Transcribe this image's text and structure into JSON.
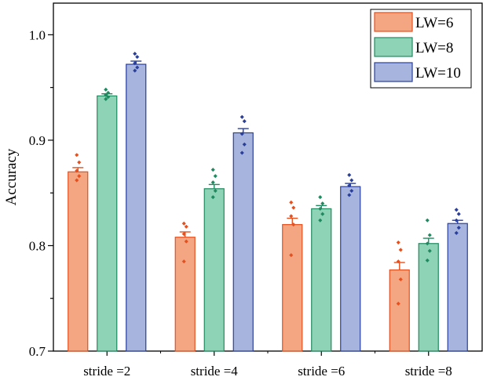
{
  "chart_data": {
    "type": "bar",
    "title": "",
    "xlabel": "",
    "ylabel": "Accuracy",
    "ylim": [
      0.7,
      1.03
    ],
    "yticks": [
      "0.7",
      "0.8",
      "0.9",
      "1.0"
    ],
    "ytick_values": [
      0.7,
      0.8,
      0.9,
      1.0
    ],
    "grid": false,
    "legend_position": "top-right",
    "categories": [
      "stride =2",
      "stride =4",
      "stride =6",
      "stride =8"
    ],
    "series": [
      {
        "name": "LW=6",
        "fill": "#f4a582",
        "stroke": "#e6501e",
        "values": [
          0.87,
          0.808,
          0.82,
          0.777
        ],
        "error": [
          0.004,
          0.005,
          0.006,
          0.007
        ],
        "points": [
          [
            0.886,
            0.879,
            0.871,
            0.866,
            0.862
          ],
          [
            0.821,
            0.818,
            0.811,
            0.804,
            0.785
          ],
          [
            0.841,
            0.836,
            0.828,
            0.82,
            0.791
          ],
          [
            0.803,
            0.796,
            0.785,
            0.768,
            0.745
          ]
        ]
      },
      {
        "name": "LW=8",
        "fill": "#8fd3b6",
        "stroke": "#1f8a5f",
        "values": [
          0.942,
          0.854,
          0.835,
          0.802
        ],
        "error": [
          0.002,
          0.004,
          0.003,
          0.005
        ],
        "points": [
          [
            0.948,
            0.945,
            0.943,
            0.941,
            0.939
          ],
          [
            0.872,
            0.866,
            0.86,
            0.852,
            0.846
          ],
          [
            0.846,
            0.84,
            0.835,
            0.83,
            0.824
          ],
          [
            0.824,
            0.81,
            0.802,
            0.795,
            0.786
          ]
        ]
      },
      {
        "name": "LW=10",
        "fill": "#a6b4de",
        "stroke": "#2a3f9a",
        "values": [
          0.972,
          0.907,
          0.856,
          0.821
        ],
        "error": [
          0.003,
          0.004,
          0.003,
          0.003
        ],
        "points": [
          [
            0.982,
            0.979,
            0.973,
            0.969,
            0.966
          ],
          [
            0.922,
            0.918,
            0.906,
            0.896,
            0.888
          ],
          [
            0.867,
            0.862,
            0.857,
            0.852,
            0.848
          ],
          [
            0.834,
            0.83,
            0.824,
            0.817,
            0.812
          ]
        ]
      }
    ]
  }
}
